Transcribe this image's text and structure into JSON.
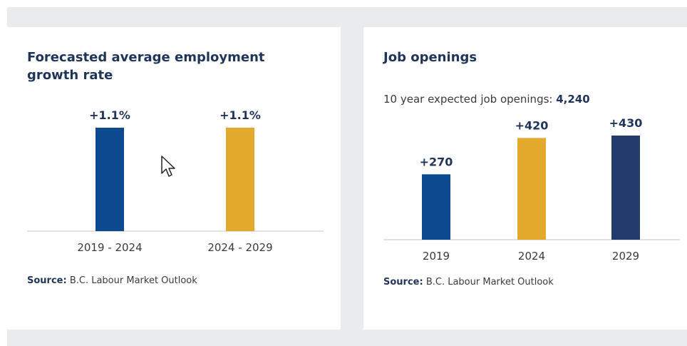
{
  "charts": {
    "growth": {
      "title": "Forecasted average employment growth rate",
      "source_label": "Source:",
      "source_text": "B.C. Labour Market Outlook"
    },
    "openings": {
      "title": "Job openings",
      "subtitle_label": "10 year expected job openings:",
      "subtitle_value": "4,240",
      "source_label": "Source:",
      "source_text": "B.C. Labour Market Outlook"
    }
  },
  "colors": {
    "blue": "#0e4a8f",
    "gold": "#e3a92c",
    "navy": "#243b6e"
  },
  "chart_data": [
    {
      "type": "bar",
      "title": "Forecasted average employment growth rate",
      "categories": [
        "2019 - 2024",
        "2024 - 2029"
      ],
      "values": [
        1.1,
        1.1
      ],
      "data_labels": [
        "+1.1%",
        "+1.1%"
      ],
      "bar_colors": [
        "#0e4a8f",
        "#e3a92c"
      ],
      "ylim": [
        0,
        1.1
      ],
      "grid": false,
      "legend": "none"
    },
    {
      "type": "bar",
      "title": "Job openings",
      "categories": [
        "2019",
        "2024",
        "2029"
      ],
      "values": [
        270,
        420,
        430
      ],
      "data_labels": [
        "+270",
        "+420",
        "+430"
      ],
      "bar_colors": [
        "#0e4a8f",
        "#e3a92c",
        "#243b6e"
      ],
      "ylim": [
        0,
        430
      ],
      "grid": false,
      "legend": "none"
    }
  ]
}
